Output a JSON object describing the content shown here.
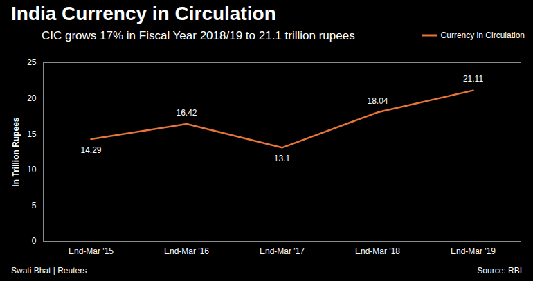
{
  "chart_data": {
    "type": "line",
    "title": "India Currency in Circulation",
    "subtitle": "CIC grows 17% in Fiscal Year 2018/19 to 21.1 trillion rupees",
    "y_label": "In Trillion Rupees",
    "credit": "Swati Bhat | Reuters",
    "source": "Source: RBI",
    "categories": [
      "End-Mar '15",
      "End-Mar '16",
      "End-Mar '17",
      "End-Mar '18",
      "End-Mar '19"
    ],
    "series": [
      {
        "name": "Currency in Circulation",
        "color": "#e8743b",
        "values": [
          14.29,
          16.42,
          13.1,
          18.04,
          21.11
        ]
      }
    ],
    "ylim": [
      0,
      25
    ],
    "yticks": [
      0,
      5,
      10,
      15,
      20,
      25
    ],
    "grid": false,
    "legend": "top-right",
    "data_labels": true
  }
}
